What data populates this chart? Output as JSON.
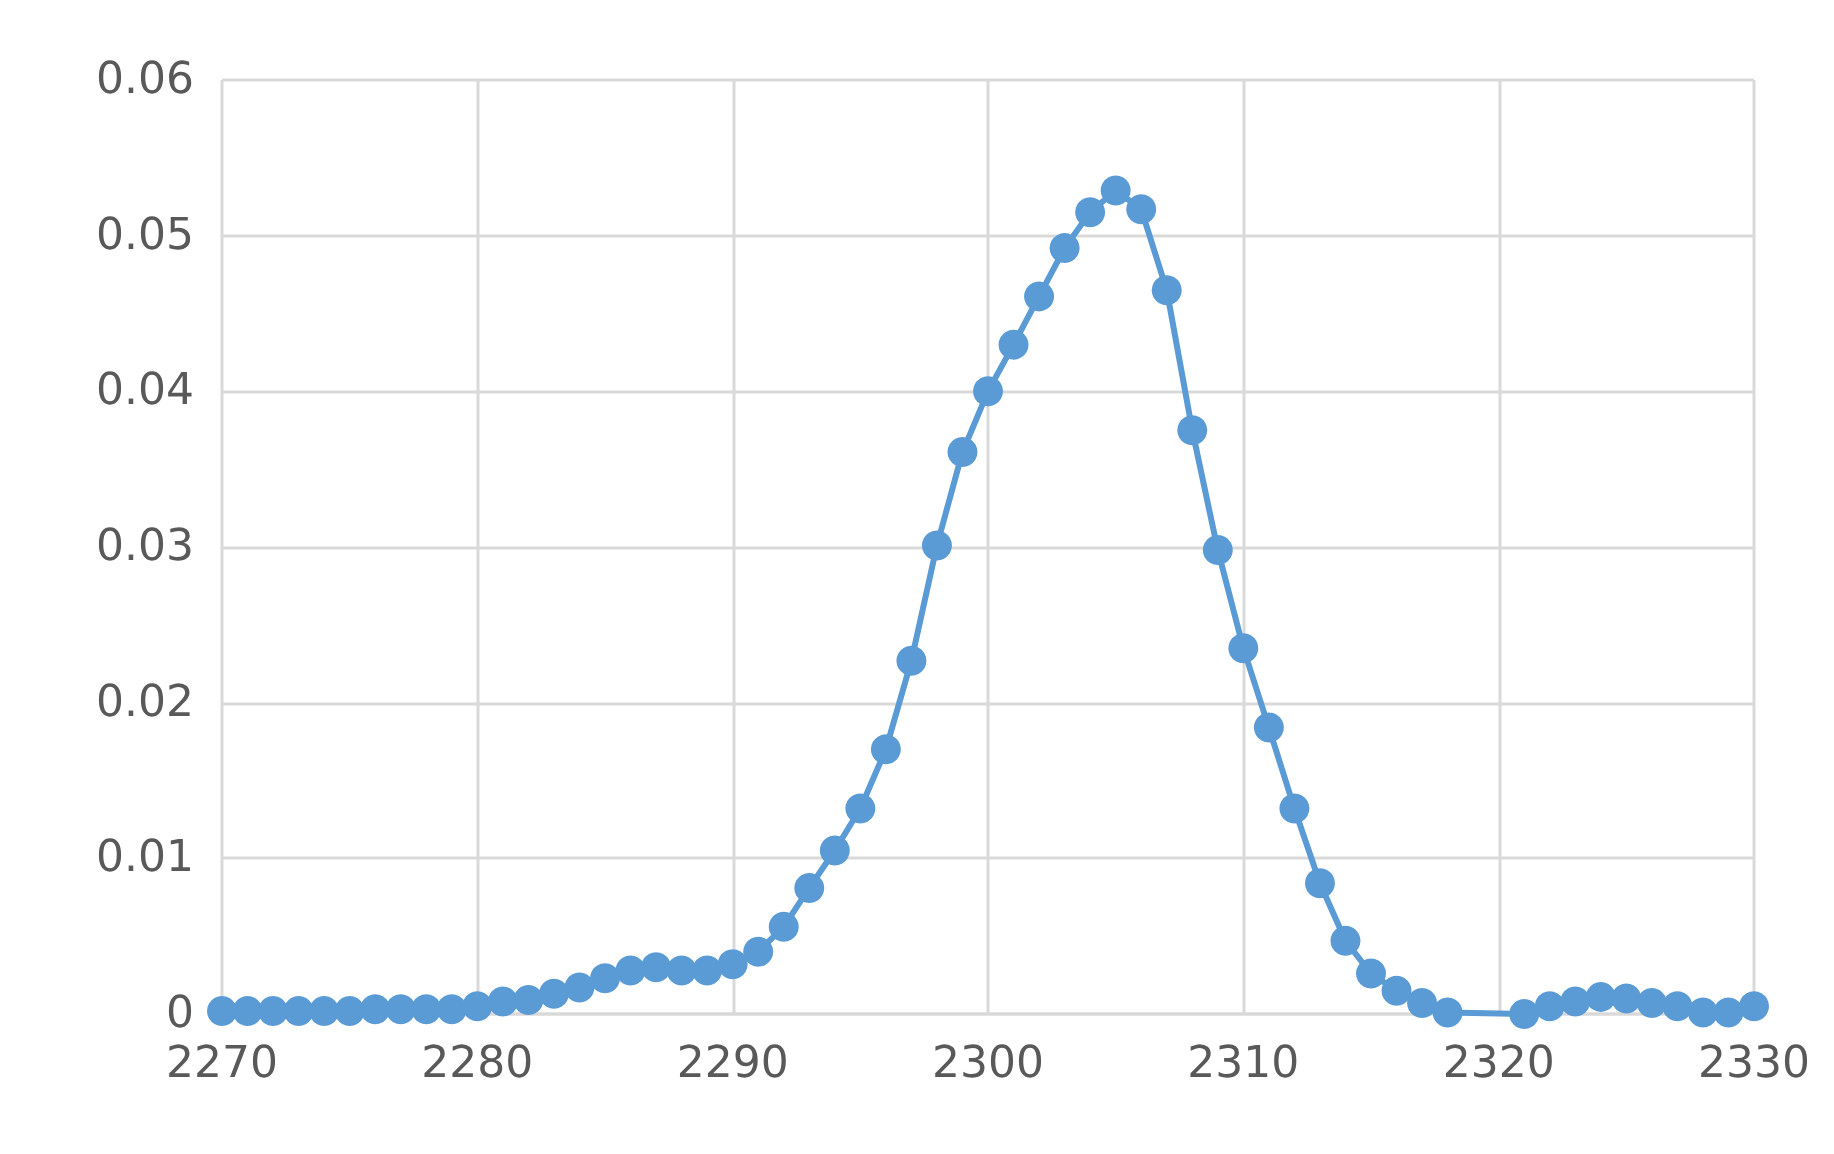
{
  "chart_data": {
    "type": "line",
    "x": [
      2270,
      2271,
      2272,
      2273,
      2274,
      2275,
      2276,
      2277,
      2278,
      2279,
      2280,
      2281,
      2282,
      2283,
      2284,
      2285,
      2286,
      2287,
      2288,
      2289,
      2290,
      2291,
      2292,
      2293,
      2294,
      2295,
      2296,
      2297,
      2298,
      2299,
      2300,
      2301,
      2302,
      2303,
      2304,
      2305,
      2306,
      2307,
      2308,
      2309,
      2310,
      2311,
      2312,
      2313,
      2314,
      2315,
      2316,
      2317,
      2318,
      2319,
      2320,
      2321,
      2322,
      2323,
      2324,
      2325,
      2326,
      2327,
      2328,
      2329,
      2330
    ],
    "series": [
      {
        "color": "#5b9bd5",
        "values": [
          0.0002,
          0.0002,
          0.0002,
          0.0002,
          0.0002,
          0.0002,
          0.0003,
          0.0003,
          0.0003,
          0.0003,
          0.0005,
          0.0008,
          0.0009,
          0.0013,
          0.0017,
          0.0023,
          0.0028,
          0.003,
          0.0028,
          0.0028,
          0.0032,
          0.004,
          0.0056,
          0.0081,
          0.0105,
          0.0132,
          0.017,
          0.0227,
          0.0301,
          0.0361,
          0.04,
          0.043,
          0.0461,
          0.0492,
          0.0515,
          0.0529,
          0.0517,
          0.0465,
          0.0375,
          0.0298,
          0.0235,
          0.0184,
          0.0132,
          0.0084,
          0.0047,
          0.0026,
          0.0015,
          0.0007,
          0.0001,
          null,
          null,
          0,
          0.0005,
          0.0008,
          0.0011,
          0.001,
          0.0007,
          0.0005,
          0.0001,
          0.0001,
          0.0005
        ]
      }
    ],
    "xlim": [
      2270,
      2330
    ],
    "xticks": [
      2270,
      2280,
      2290,
      2300,
      2310,
      2320,
      2330
    ],
    "ylim": [
      0,
      0.06
    ],
    "yticks": [
      0,
      0.01,
      0.02,
      0.03,
      0.04,
      0.05,
      0.06
    ],
    "grid": true,
    "marker": "circle",
    "line_style": "solid"
  }
}
